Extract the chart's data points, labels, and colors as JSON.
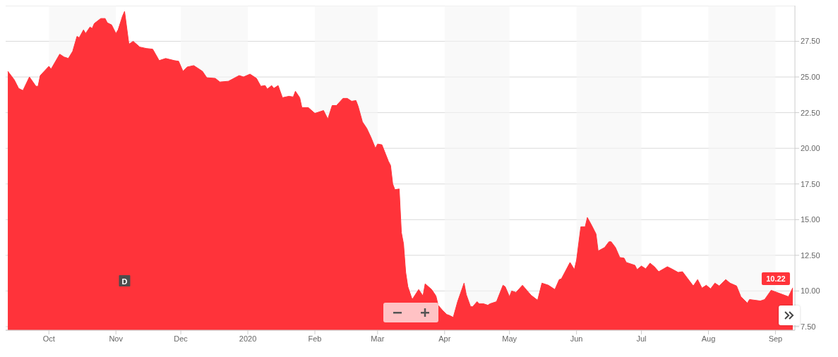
{
  "chart_data": {
    "type": "area",
    "x": [
      "2019-09-12",
      "2019-09-15",
      "2019-09-17",
      "2019-09-19",
      "2019-09-22",
      "2019-09-25",
      "2019-09-26",
      "2019-09-27",
      "2019-10-01",
      "2019-10-02",
      "2019-10-06",
      "2019-10-08",
      "2019-10-10",
      "2019-10-12",
      "2019-10-14",
      "2019-10-15",
      "2019-10-17",
      "2019-10-18",
      "2019-10-20",
      "2019-10-21",
      "2019-10-22",
      "2019-10-25",
      "2019-10-27",
      "2019-10-28",
      "2019-10-30",
      "2019-11-01",
      "2019-11-02",
      "2019-11-04",
      "2019-11-05",
      "2019-11-07",
      "2019-11-09",
      "2019-11-12",
      "2019-11-15",
      "2019-11-18",
      "2019-11-21",
      "2019-11-24",
      "2019-11-28",
      "2019-11-30",
      "2019-12-02",
      "2019-12-04",
      "2019-12-07",
      "2019-12-11",
      "2019-12-13",
      "2019-12-17",
      "2019-12-19",
      "2019-12-23",
      "2019-12-28",
      "2019-12-30",
      "2020-01-02",
      "2020-01-05",
      "2020-01-07",
      "2020-01-09",
      "2020-01-10",
      "2020-01-12",
      "2020-01-13",
      "2020-01-15",
      "2020-01-17",
      "2020-01-20",
      "2020-01-22",
      "2020-01-23",
      "2020-01-25",
      "2020-01-26",
      "2020-01-29",
      "2020-02-01",
      "2020-02-05",
      "2020-02-07",
      "2020-02-09",
      "2020-02-11",
      "2020-02-14",
      "2020-02-16",
      "2020-02-18",
      "2020-02-20",
      "2020-02-21",
      "2020-02-23",
      "2020-02-25",
      "2020-02-27",
      "2020-02-29",
      "2020-03-01",
      "2020-03-03",
      "2020-03-06",
      "2020-03-07",
      "2020-03-08",
      "2020-03-09",
      "2020-03-11",
      "2020-03-12",
      "2020-03-13",
      "2020-03-14",
      "2020-03-15",
      "2020-03-17",
      "2020-03-20",
      "2020-03-22",
      "2020-03-23",
      "2020-03-26",
      "2020-03-28",
      "2020-03-29",
      "2020-03-31",
      "2020-04-02",
      "2020-04-03",
      "2020-04-05",
      "2020-04-07",
      "2020-04-10",
      "2020-04-11",
      "2020-04-13",
      "2020-04-14",
      "2020-04-16",
      "2020-04-17",
      "2020-04-19",
      "2020-04-21",
      "2020-04-22",
      "2020-04-25",
      "2020-04-28",
      "2020-04-29",
      "2020-05-01",
      "2020-05-02",
      "2020-05-04",
      "2020-05-07",
      "2020-05-09",
      "2020-05-11",
      "2020-05-14",
      "2020-05-16",
      "2020-05-19",
      "2020-05-22",
      "2020-05-24",
      "2020-05-25",
      "2020-05-29",
      "2020-05-31",
      "2020-06-01",
      "2020-06-03",
      "2020-06-05",
      "2020-06-06",
      "2020-06-08",
      "2020-06-10",
      "2020-06-11",
      "2020-06-14",
      "2020-06-16",
      "2020-06-17",
      "2020-06-19",
      "2020-06-21",
      "2020-06-23",
      "2020-06-24",
      "2020-06-28",
      "2020-06-29",
      "2020-07-01",
      "2020-07-03",
      "2020-07-05",
      "2020-07-07",
      "2020-07-09",
      "2020-07-13",
      "2020-07-15",
      "2020-07-18",
      "2020-07-20",
      "2020-07-22",
      "2020-07-25",
      "2020-07-27",
      "2020-07-29",
      "2020-07-31",
      "2020-08-02",
      "2020-08-04",
      "2020-08-06",
      "2020-08-09",
      "2020-08-11",
      "2020-08-14",
      "2020-08-16",
      "2020-08-19",
      "2020-08-20",
      "2020-08-25",
      "2020-08-27",
      "2020-08-30",
      "2020-09-07",
      "2020-09-09"
    ],
    "series": [
      {
        "color": "#ff333a",
        "values": [
          25.4,
          24.8,
          24.2,
          24.05,
          25.0,
          24.35,
          24.35,
          25.1,
          25.75,
          25.55,
          26.6,
          26.4,
          26.3,
          26.8,
          27.85,
          27.75,
          28.3,
          28.05,
          28.5,
          28.4,
          28.75,
          29.1,
          29.1,
          28.8,
          28.65,
          28.05,
          28.3,
          29.25,
          29.6,
          27.3,
          27.5,
          27.1,
          27.0,
          26.95,
          26.15,
          26.3,
          26.15,
          26.1,
          25.4,
          25.7,
          25.8,
          25.4,
          24.95,
          24.9,
          24.65,
          24.7,
          25.1,
          25.0,
          25.2,
          24.9,
          24.35,
          24.4,
          24.15,
          24.4,
          24.2,
          24.4,
          23.55,
          23.65,
          23.6,
          24.0,
          23.55,
          22.85,
          22.85,
          22.45,
          22.65,
          22.05,
          23.0,
          23.0,
          23.5,
          23.5,
          23.3,
          23.35,
          22.95,
          21.85,
          21.4,
          20.75,
          20.0,
          20.3,
          20.25,
          19.1,
          18.8,
          17.5,
          17.1,
          17.15,
          14.1,
          13.3,
          11.3,
          10.3,
          9.4,
          10.1,
          9.65,
          10.5,
          10.1,
          9.65,
          9.0,
          8.65,
          8.35,
          8.3,
          8.15,
          9.25,
          10.55,
          9.75,
          8.9,
          8.9,
          9.25,
          9.1,
          9.1,
          9.0,
          9.1,
          9.25,
          10.4,
          10.3,
          9.6,
          10.0,
          9.9,
          10.4,
          10.05,
          9.7,
          9.35,
          10.55,
          10.4,
          10.1,
          10.8,
          10.85,
          12.0,
          11.5,
          12.15,
          14.5,
          14.5,
          15.15,
          14.6,
          14.0,
          12.8,
          13.05,
          13.45,
          13.45,
          13.05,
          12.35,
          12.3,
          12.0,
          11.8,
          11.5,
          11.75,
          11.55,
          11.95,
          11.7,
          11.35,
          11.7,
          11.55,
          11.3,
          11.35,
          10.95,
          10.35,
          10.8,
          10.2,
          10.4,
          10.15,
          10.55,
          10.35,
          10.8,
          10.55,
          10.35,
          9.6,
          9.15,
          9.4,
          9.3,
          9.4,
          10.05,
          9.6,
          10.22
        ]
      }
    ],
    "xlim": [
      "2019-09-11",
      "2020-09-10"
    ],
    "xticks": [
      {
        "value": "2019-10-01",
        "label": "Oct"
      },
      {
        "value": "2019-11-01",
        "label": "Nov"
      },
      {
        "value": "2019-12-01",
        "label": "Dec"
      },
      {
        "value": "2020-01-01",
        "label": "2020"
      },
      {
        "value": "2020-02-01",
        "label": "Feb"
      },
      {
        "value": "2020-03-01",
        "label": "Mar"
      },
      {
        "value": "2020-04-01",
        "label": "Apr"
      },
      {
        "value": "2020-05-01",
        "label": "May"
      },
      {
        "value": "2020-06-01",
        "label": "Jun"
      },
      {
        "value": "2020-07-01",
        "label": "Jul"
      },
      {
        "value": "2020-08-01",
        "label": "Aug"
      },
      {
        "value": "2020-09-01",
        "label": "Sep"
      }
    ],
    "ylim": [
      7.25,
      30
    ],
    "yticks": [
      {
        "value": 7.5,
        "label": "7.50"
      },
      {
        "value": 10,
        "label": "10.00"
      },
      {
        "value": 12.5,
        "label": "12.50"
      },
      {
        "value": 15,
        "label": "15.00"
      },
      {
        "value": 17.5,
        "label": "17.50"
      },
      {
        "value": 20,
        "label": "20.00"
      },
      {
        "value": 22.5,
        "label": "22.50"
      },
      {
        "value": 25,
        "label": "25.00"
      },
      {
        "value": 27.5,
        "label": "27.50"
      }
    ],
    "grid": "y",
    "bands": [
      {
        "axis": "x",
        "from": "2019-10-01",
        "to": "2019-11-01",
        "color": "#f5f5f5"
      },
      {
        "axis": "x",
        "from": "2019-12-01",
        "to": "2020-01-01",
        "color": "#f5f5f5"
      },
      {
        "axis": "x",
        "from": "2020-02-01",
        "to": "2020-03-01",
        "color": "#f5f5f5"
      },
      {
        "axis": "x",
        "from": "2020-04-01",
        "to": "2020-05-01",
        "color": "#f5f5f5"
      },
      {
        "axis": "x",
        "from": "2020-06-01",
        "to": "2020-07-01",
        "color": "#f5f5f5"
      },
      {
        "axis": "x",
        "from": "2020-08-01",
        "to": "2020-09-01",
        "color": "#f5f5f5"
      }
    ],
    "annotations": [
      {
        "text": "10.22",
        "x": "2020-09-09",
        "y": 10.22
      },
      {
        "text": "D",
        "x": "2019-11-05"
      }
    ]
  }
}
